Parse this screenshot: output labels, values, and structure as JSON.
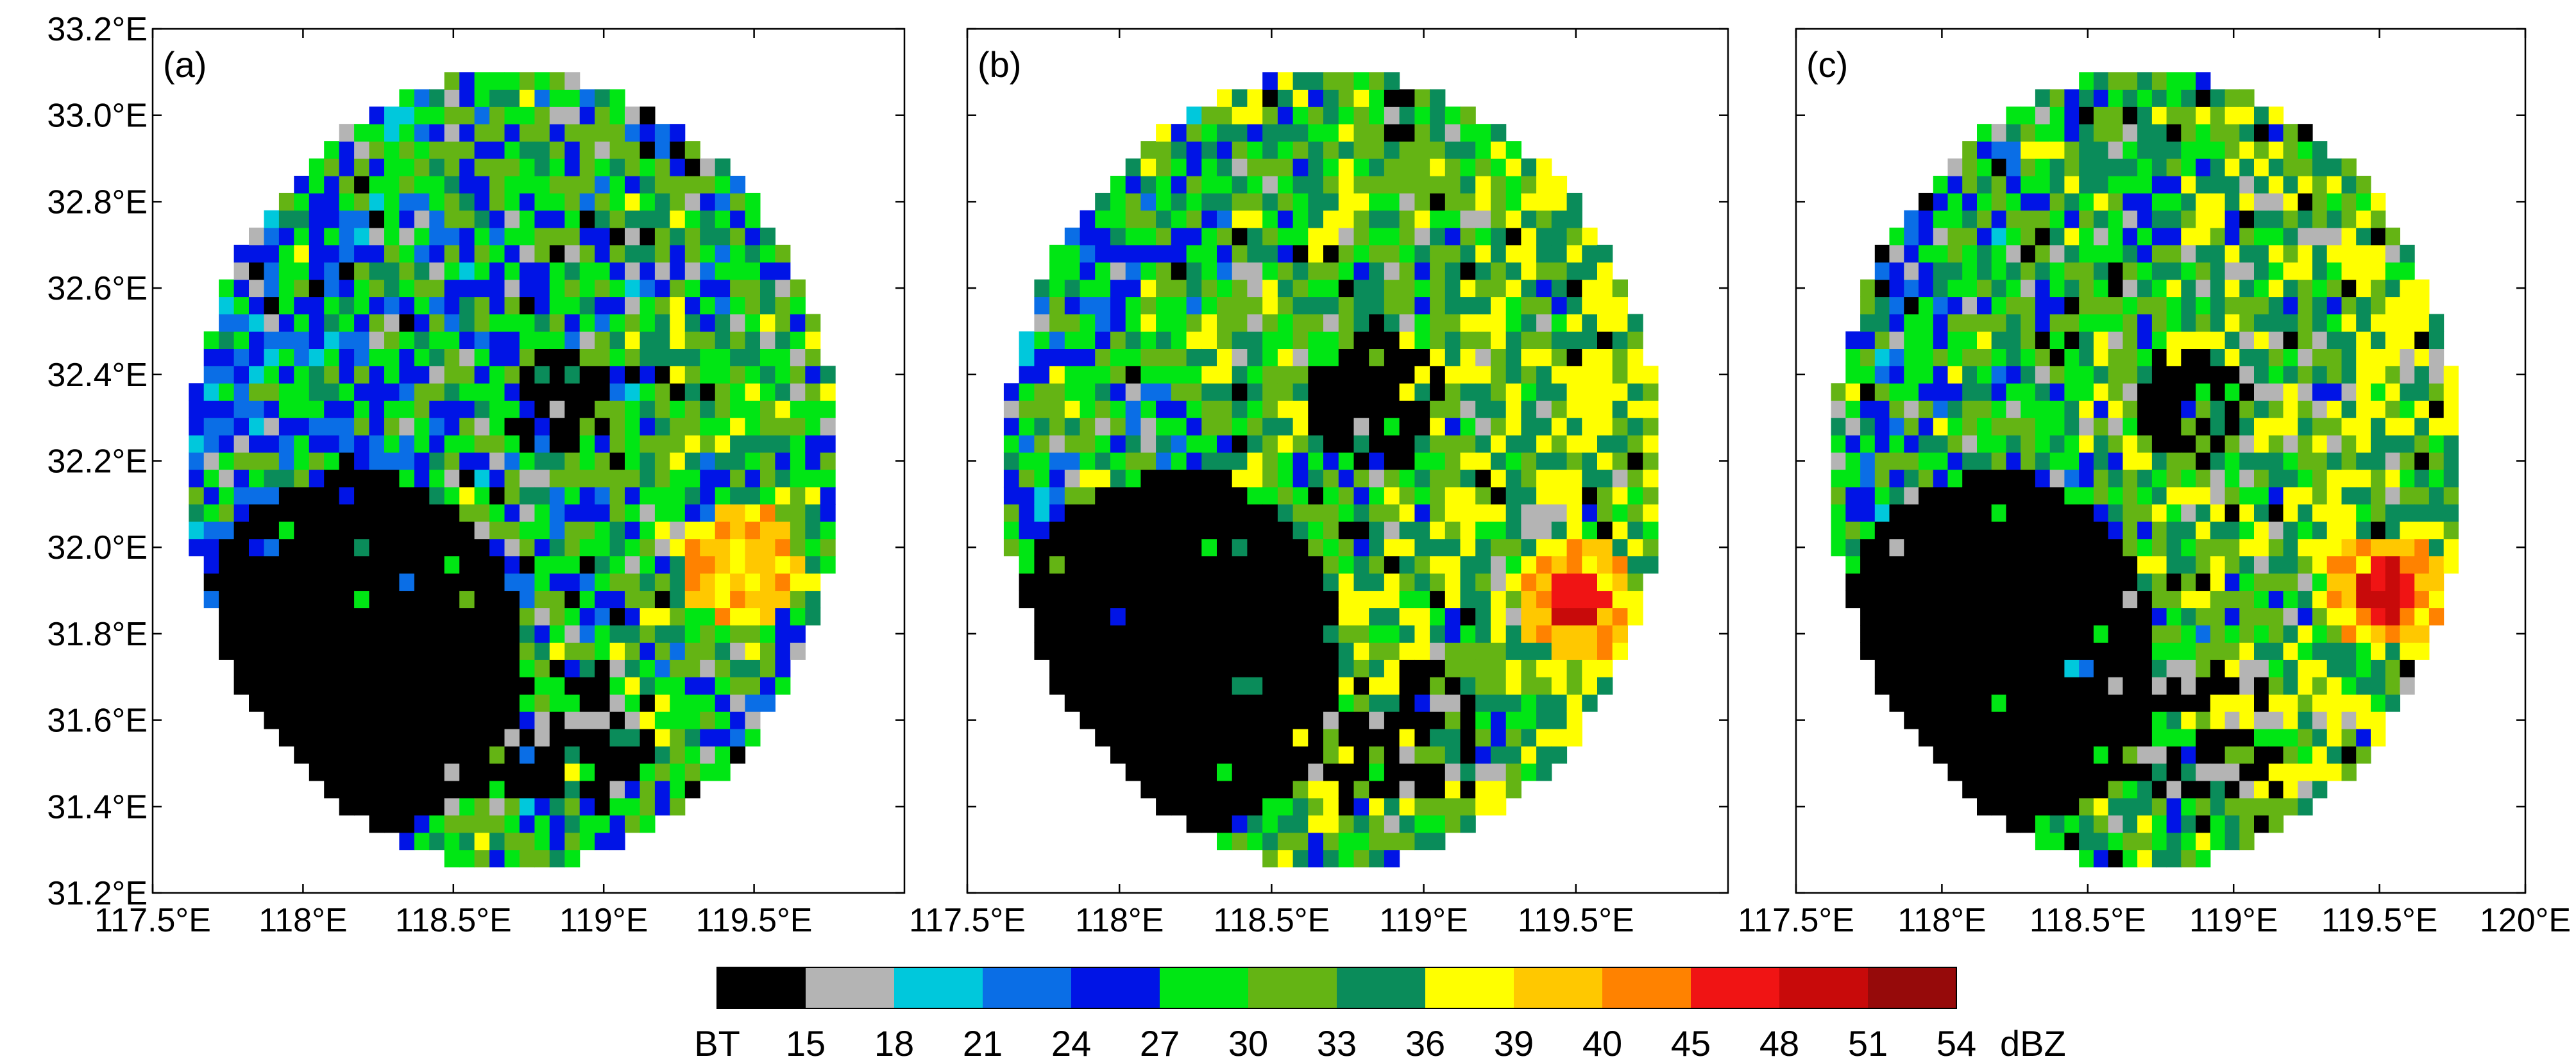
{
  "colors": {
    "bins": [
      "#000000",
      "#b4b4b4",
      "#00c8dc",
      "#0a6ee6",
      "#0014e6",
      "#00e614",
      "#64b414",
      "#0a8c5a",
      "#ffff00",
      "#ffc800",
      "#ff8200",
      "#f01414",
      "#c80a0a",
      "#960a0a"
    ]
  },
  "chart_data": [
    {
      "type": "heatmap",
      "panel_label": "(a)",
      "x_ticks": [
        "117.5°E",
        "118°E",
        "118.5°E",
        "119°E",
        "119.5°E"
      ],
      "y_ticks": [
        "31.2°E",
        "31.4°E",
        "31.6°E",
        "31.8°E",
        "32.0°E",
        "32.2°E",
        "32.4°E",
        "32.6°E",
        "32.8°E",
        "33.0°E",
        "33.2°E"
      ],
      "xlim": [
        117.5,
        120.0
      ],
      "ylim": [
        31.2,
        33.2
      ],
      "radar_center": [
        118.7,
        32.18
      ],
      "radar_radius_deg": [
        1.08,
        0.92
      ],
      "grid": false,
      "echo_zone": {
        "center": [
          119.45,
          31.96
        ],
        "range_dbz": [
          39,
          45
        ]
      }
    },
    {
      "type": "heatmap",
      "panel_label": "(b)",
      "x_ticks": [
        "117.5°E",
        "118°E",
        "118.5°E",
        "119°E",
        "119.5°E"
      ],
      "xlim": [
        117.5,
        120.0
      ],
      "ylim": [
        31.2,
        33.2
      ],
      "radar_center": [
        118.7,
        32.18
      ],
      "radar_radius_deg": [
        1.08,
        0.92
      ],
      "grid": false,
      "echo_zone": {
        "center": [
          119.5,
          31.88
        ],
        "range_dbz": [
          39,
          51
        ]
      }
    },
    {
      "type": "heatmap",
      "panel_label": "(c)",
      "x_ticks": [
        "117.5°E",
        "118°E",
        "118.5°E",
        "119°E",
        "119.5°E",
        "120°E"
      ],
      "xlim": [
        117.5,
        120.0
      ],
      "ylim": [
        31.2,
        33.2
      ],
      "radar_center": [
        118.7,
        32.18
      ],
      "radar_radius_deg": [
        1.08,
        0.92
      ],
      "grid": false,
      "echo_zone": {
        "center": [
          119.52,
          31.9
        ],
        "range_dbz": [
          39,
          48
        ]
      }
    }
  ],
  "colorbar": {
    "labels": [
      "BT",
      "15",
      "18",
      "21",
      "24",
      "27",
      "30",
      "33",
      "36",
      "39",
      "40",
      "45",
      "48",
      "51",
      "54"
    ],
    "unit": "dBZ"
  }
}
